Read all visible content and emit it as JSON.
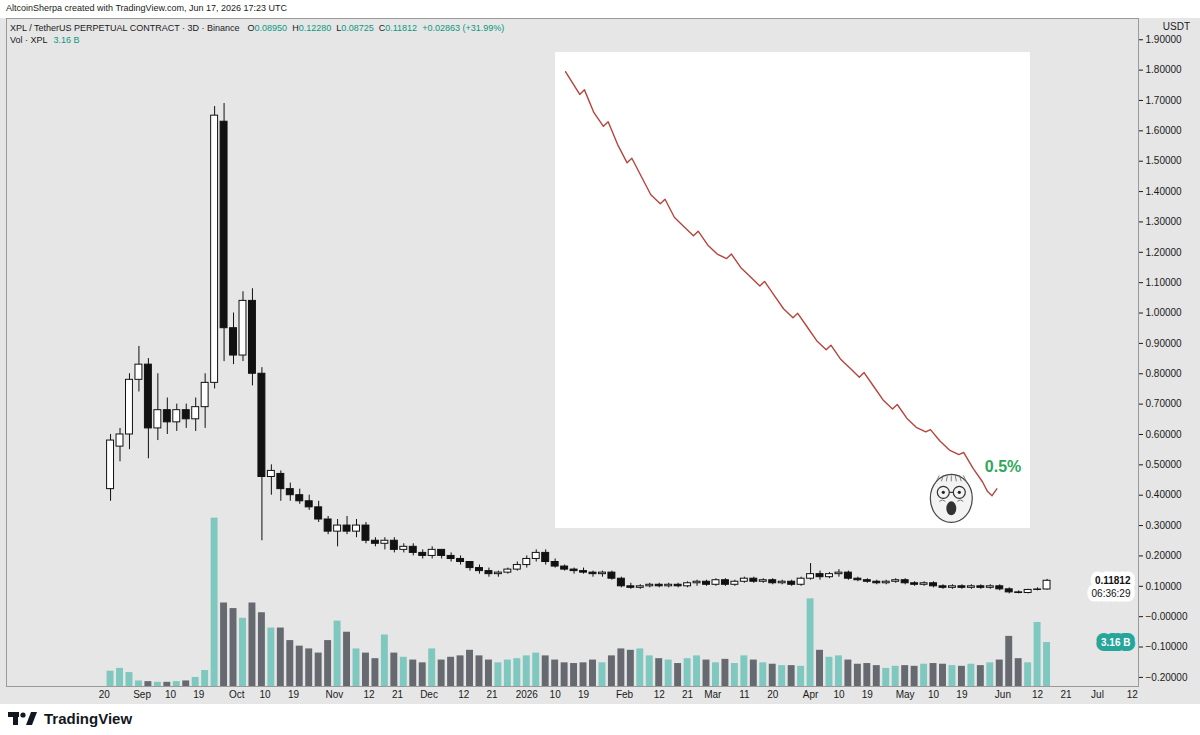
{
  "header": {
    "credit": "AltcoinSherpa created with TradingView.com, Jun 17, 2026 17:23 UTC",
    "footer_logo": "TradingView"
  },
  "chart_data": [
    {
      "type": "candlestick",
      "title": "XPL / TetherUS PERPETUAL CONTRACT · 3D · Binance",
      "ohlc_labels": [
        "O0.08950",
        "H0.12280",
        "L0.08725",
        "C0.11812",
        "+0.02863 (+31.99%)"
      ],
      "y_label": "USDT",
      "x": [
        "2025-08-22",
        "2025-08-25",
        "2025-08-28",
        "2025-08-31",
        "2025-09-03",
        "2025-09-06",
        "2025-09-09",
        "2025-09-12",
        "2025-09-15",
        "2025-09-18",
        "2025-09-21",
        "2025-09-24",
        "2025-09-27",
        "2025-09-30",
        "2025-10-03",
        "2025-10-06",
        "2025-10-09",
        "2025-10-12",
        "2025-10-15",
        "2025-10-18",
        "2025-10-21",
        "2025-10-24",
        "2025-10-27",
        "2025-10-30",
        "2025-11-02",
        "2025-11-05",
        "2025-11-08",
        "2025-11-11",
        "2025-11-14",
        "2025-11-17",
        "2025-11-20",
        "2025-11-23",
        "2025-11-26",
        "2025-11-29",
        "2025-12-02",
        "2025-12-05",
        "2025-12-08",
        "2025-12-11",
        "2025-12-14",
        "2025-12-17",
        "2025-12-20",
        "2025-12-23",
        "2025-12-26",
        "2025-12-29",
        "2026-01-01",
        "2026-01-04",
        "2026-01-07",
        "2026-01-10",
        "2026-01-13",
        "2026-01-16",
        "2026-01-19",
        "2026-01-22",
        "2026-01-25",
        "2026-01-28",
        "2026-01-31",
        "2026-02-03",
        "2026-02-06",
        "2026-02-09",
        "2026-02-12",
        "2026-02-15",
        "2026-02-18",
        "2026-02-21",
        "2026-02-24",
        "2026-02-27",
        "2026-03-02",
        "2026-03-05",
        "2026-03-08",
        "2026-03-11",
        "2026-03-14",
        "2026-03-17",
        "2026-03-20",
        "2026-03-23",
        "2026-03-26",
        "2026-03-29",
        "2026-04-01",
        "2026-04-04",
        "2026-04-07",
        "2026-04-10",
        "2026-04-13",
        "2026-04-16",
        "2026-04-19",
        "2026-04-22",
        "2026-04-25",
        "2026-04-28",
        "2026-05-01",
        "2026-05-04",
        "2026-05-07",
        "2026-05-10",
        "2026-05-13",
        "2026-05-16",
        "2026-05-19",
        "2026-05-22",
        "2026-05-25",
        "2026-05-28",
        "2026-05-31",
        "2026-06-03",
        "2026-06-06",
        "2026-06-09",
        "2026-06-12",
        "2026-06-15"
      ],
      "open": [
        0.42,
        0.56,
        0.6,
        0.78,
        0.83,
        0.62,
        0.68,
        0.64,
        0.68,
        0.65,
        0.69,
        0.77,
        1.63,
        0.95,
        0.86,
        1.04,
        0.8,
        0.46,
        0.47,
        0.42,
        0.4,
        0.38,
        0.36,
        0.32,
        0.28,
        0.3,
        0.28,
        0.3,
        0.25,
        0.24,
        0.25,
        0.22,
        0.23,
        0.21,
        0.2,
        0.22,
        0.2,
        0.19,
        0.18,
        0.16,
        0.15,
        0.14,
        0.145,
        0.155,
        0.17,
        0.19,
        0.21,
        0.18,
        0.165,
        0.155,
        0.15,
        0.145,
        0.14,
        0.145,
        0.125,
        0.1,
        0.095,
        0.1,
        0.105,
        0.1,
        0.105,
        0.1,
        0.11,
        0.115,
        0.105,
        0.12,
        0.105,
        0.115,
        0.125,
        0.115,
        0.12,
        0.11,
        0.115,
        0.105,
        0.125,
        0.14,
        0.13,
        0.14,
        0.145,
        0.125,
        0.12,
        0.115,
        0.11,
        0.115,
        0.12,
        0.11,
        0.105,
        0.11,
        0.1,
        0.095,
        0.1,
        0.095,
        0.1,
        0.095,
        0.1,
        0.09,
        0.08,
        0.078,
        0.088,
        0.0895
      ],
      "high": [
        0.6,
        0.62,
        0.8,
        0.89,
        0.85,
        0.8,
        0.72,
        0.7,
        0.7,
        0.72,
        0.8,
        1.68,
        1.69,
        1.0,
        1.07,
        1.08,
        0.82,
        0.5,
        0.48,
        0.44,
        0.42,
        0.4,
        0.38,
        0.33,
        0.32,
        0.33,
        0.32,
        0.31,
        0.26,
        0.26,
        0.26,
        0.24,
        0.24,
        0.22,
        0.23,
        0.22,
        0.21,
        0.2,
        0.18,
        0.17,
        0.16,
        0.15,
        0.16,
        0.18,
        0.2,
        0.22,
        0.22,
        0.19,
        0.17,
        0.16,
        0.16,
        0.15,
        0.15,
        0.15,
        0.13,
        0.11,
        0.105,
        0.11,
        0.11,
        0.11,
        0.11,
        0.115,
        0.12,
        0.12,
        0.125,
        0.125,
        0.12,
        0.13,
        0.13,
        0.125,
        0.125,
        0.12,
        0.12,
        0.13,
        0.175,
        0.15,
        0.145,
        0.155,
        0.15,
        0.13,
        0.125,
        0.12,
        0.12,
        0.125,
        0.125,
        0.115,
        0.115,
        0.115,
        0.105,
        0.105,
        0.105,
        0.105,
        0.105,
        0.105,
        0.105,
        0.095,
        0.085,
        0.09,
        0.095,
        0.1228
      ],
      "low": [
        0.38,
        0.51,
        0.55,
        0.74,
        0.52,
        0.58,
        0.6,
        0.61,
        0.62,
        0.61,
        0.62,
        0.75,
        0.84,
        0.83,
        0.84,
        0.76,
        0.25,
        0.4,
        0.38,
        0.38,
        0.37,
        0.35,
        0.31,
        0.27,
        0.23,
        0.27,
        0.26,
        0.24,
        0.23,
        0.22,
        0.21,
        0.21,
        0.2,
        0.19,
        0.19,
        0.19,
        0.18,
        0.17,
        0.15,
        0.14,
        0.13,
        0.13,
        0.14,
        0.15,
        0.16,
        0.18,
        0.17,
        0.16,
        0.15,
        0.14,
        0.14,
        0.13,
        0.13,
        0.12,
        0.095,
        0.09,
        0.09,
        0.095,
        0.095,
        0.095,
        0.095,
        0.095,
        0.1,
        0.1,
        0.1,
        0.1,
        0.1,
        0.11,
        0.11,
        0.11,
        0.105,
        0.105,
        0.1,
        0.1,
        0.12,
        0.12,
        0.125,
        0.13,
        0.12,
        0.115,
        0.11,
        0.105,
        0.105,
        0.11,
        0.105,
        0.1,
        0.1,
        0.095,
        0.09,
        0.09,
        0.09,
        0.09,
        0.09,
        0.09,
        0.085,
        0.075,
        0.075,
        0.075,
        0.085,
        0.08725
      ],
      "close": [
        0.58,
        0.6,
        0.78,
        0.83,
        0.62,
        0.68,
        0.64,
        0.68,
        0.65,
        0.69,
        0.77,
        1.65,
        0.95,
        0.86,
        1.04,
        0.8,
        0.46,
        0.48,
        0.42,
        0.4,
        0.38,
        0.36,
        0.32,
        0.28,
        0.3,
        0.28,
        0.3,
        0.25,
        0.24,
        0.25,
        0.22,
        0.23,
        0.21,
        0.2,
        0.22,
        0.2,
        0.19,
        0.18,
        0.16,
        0.15,
        0.14,
        0.145,
        0.155,
        0.17,
        0.19,
        0.21,
        0.18,
        0.165,
        0.155,
        0.15,
        0.145,
        0.14,
        0.145,
        0.125,
        0.1,
        0.095,
        0.1,
        0.105,
        0.1,
        0.105,
        0.1,
        0.11,
        0.115,
        0.105,
        0.12,
        0.105,
        0.115,
        0.125,
        0.115,
        0.12,
        0.11,
        0.115,
        0.105,
        0.125,
        0.14,
        0.13,
        0.14,
        0.145,
        0.125,
        0.12,
        0.115,
        0.11,
        0.115,
        0.12,
        0.11,
        0.105,
        0.11,
        0.1,
        0.095,
        0.1,
        0.095,
        0.1,
        0.095,
        0.1,
        0.09,
        0.08,
        0.078,
        0.088,
        0.0895,
        0.11812
      ],
      "xlim": [
        "2025-07-20",
        "2026-07-14"
      ],
      "xticks": [
        {
          "value": "2025-08-20",
          "label": "20"
        },
        {
          "value": "2025-09-01",
          "label": "Sep"
        },
        {
          "value": "2025-09-10",
          "label": "10"
        },
        {
          "value": "2025-09-19",
          "label": "19"
        },
        {
          "value": "2025-10-01",
          "label": "Oct"
        },
        {
          "value": "2025-10-10",
          "label": "10"
        },
        {
          "value": "2025-10-19",
          "label": "19"
        },
        {
          "value": "2025-11-01",
          "label": "Nov"
        },
        {
          "value": "2025-11-12",
          "label": "12"
        },
        {
          "value": "2025-11-21",
          "label": "21"
        },
        {
          "value": "2025-12-01",
          "label": "Dec"
        },
        {
          "value": "2025-12-12",
          "label": "12"
        },
        {
          "value": "2025-12-21",
          "label": "21"
        },
        {
          "value": "2026-01-01",
          "label": "2026"
        },
        {
          "value": "2026-01-10",
          "label": "10"
        },
        {
          "value": "2026-01-19",
          "label": "19"
        },
        {
          "value": "2026-02-01",
          "label": "Feb"
        },
        {
          "value": "2026-02-12",
          "label": "12"
        },
        {
          "value": "2026-02-21",
          "label": "21"
        },
        {
          "value": "2026-03-01",
          "label": "Mar"
        },
        {
          "value": "2026-03-11",
          "label": "11"
        },
        {
          "value": "2026-03-20",
          "label": "20"
        },
        {
          "value": "2026-04-01",
          "label": "Apr"
        },
        {
          "value": "2026-04-10",
          "label": "10"
        },
        {
          "value": "2026-04-19",
          "label": "19"
        },
        {
          "value": "2026-05-01",
          "label": "May"
        },
        {
          "value": "2026-05-10",
          "label": "10"
        },
        {
          "value": "2026-05-19",
          "label": "19"
        },
        {
          "value": "2026-06-01",
          "label": "Jun"
        },
        {
          "value": "2026-06-12",
          "label": "12"
        },
        {
          "value": "2026-06-21",
          "label": "21"
        },
        {
          "value": "2026-07-01",
          "label": "Jul"
        },
        {
          "value": "2026-07-12",
          "label": "12"
        }
      ],
      "ylim": [
        -0.23,
        1.97
      ],
      "yticks": [
        {
          "value": -0.2,
          "label": "−0.20000"
        },
        {
          "value": -0.1,
          "label": "−0.10000"
        },
        {
          "value": 0,
          "label": "−0.00000"
        },
        {
          "value": 0.1,
          "label": "0.10000"
        },
        {
          "value": 0.2,
          "label": "0.20000"
        },
        {
          "value": 0.3,
          "label": "0.30000"
        },
        {
          "value": 0.4,
          "label": "0.40000"
        },
        {
          "value": 0.5,
          "label": "0.50000"
        },
        {
          "value": 0.6,
          "label": "0.60000"
        },
        {
          "value": 0.7,
          "label": "0.70000"
        },
        {
          "value": 0.8,
          "label": "0.80000"
        },
        {
          "value": 0.9,
          "label": "0.90000"
        },
        {
          "value": 1.0,
          "label": "1.00000"
        },
        {
          "value": 1.1,
          "label": "1.10000"
        },
        {
          "value": 1.2,
          "label": "1.20000"
        },
        {
          "value": 1.3,
          "label": "1.30000"
        },
        {
          "value": 1.4,
          "label": "1.40000"
        },
        {
          "value": 1.5,
          "label": "1.50000"
        },
        {
          "value": 1.6,
          "label": "1.60000"
        },
        {
          "value": 1.7,
          "label": "1.70000"
        },
        {
          "value": 1.8,
          "label": "1.80000"
        },
        {
          "value": 1.9,
          "label": "1.90000"
        }
      ],
      "grid": false,
      "last_price_label": "0.11812",
      "countdown": "06:36:29",
      "series": [
        {
          "name": "Vol · XPL",
          "type": "bar",
          "axis": "y2",
          "last_value_label": "3.16 B",
          "values": [
            1.1,
            1.3,
            1.0,
            0.4,
            0.35,
            0.3,
            0.3,
            0.35,
            0.4,
            0.65,
            1.15,
            12.1,
            6.0,
            5.6,
            4.9,
            6.0,
            5.3,
            4.2,
            4.2,
            3.3,
            2.9,
            2.7,
            2.4,
            3.3,
            4.7,
            3.9,
            2.7,
            2.4,
            2.0,
            3.7,
            2.4,
            2.1,
            1.9,
            1.7,
            2.7,
            1.9,
            2.1,
            2.2,
            2.6,
            2.2,
            1.9,
            1.7,
            1.9,
            2.0,
            2.2,
            2.4,
            2.2,
            1.9,
            1.7,
            1.65,
            1.7,
            1.9,
            1.7,
            2.2,
            2.7,
            2.6,
            2.7,
            2.2,
            2.0,
            1.9,
            1.65,
            2.0,
            2.2,
            1.9,
            1.7,
            1.95,
            1.65,
            2.2,
            1.9,
            1.7,
            1.6,
            1.5,
            1.5,
            1.45,
            6.3,
            2.6,
            2.1,
            2.2,
            1.9,
            1.6,
            1.65,
            1.5,
            1.3,
            1.45,
            1.5,
            1.45,
            1.6,
            1.65,
            1.6,
            1.5,
            1.45,
            1.6,
            1.5,
            1.7,
            1.9,
            3.6,
            2.0,
            1.7,
            4.6,
            3.16
          ]
        }
      ],
      "y2lim": [
        0,
        48
      ],
      "y2ticks": []
    },
    {
      "type": "line",
      "color": "#b5453d",
      "x": [
        0,
        3,
        4,
        6,
        8,
        9,
        11,
        13,
        14,
        16,
        18,
        20,
        21,
        23,
        25,
        27,
        28,
        30,
        32,
        34,
        35,
        37,
        39,
        41,
        42,
        44,
        46,
        48,
        49,
        51,
        53,
        55,
        56,
        58,
        60,
        62,
        63,
        65,
        67,
        69,
        70,
        72,
        74,
        76,
        77,
        79,
        81,
        83,
        84,
        86,
        88,
        89,
        90,
        91
      ],
      "values": [
        98,
        93,
        94,
        89,
        86,
        87,
        82,
        78,
        79,
        75,
        71,
        69,
        70,
        66,
        64,
        62,
        63,
        60,
        58,
        57,
        58,
        55,
        53,
        51,
        52,
        49,
        46,
        44,
        45,
        42,
        39,
        37,
        38,
        35,
        33,
        31,
        32,
        29,
        26,
        24,
        25,
        22,
        20,
        19,
        19.5,
        17,
        15,
        14,
        14.5,
        11,
        8,
        6,
        5,
        6.5
      ],
      "xlim": [
        0,
        96
      ],
      "ylim": [
        0,
        100
      ],
      "xticks": [],
      "yticks": [],
      "tick_labels": false,
      "annotation": "0.5%"
    }
  ]
}
